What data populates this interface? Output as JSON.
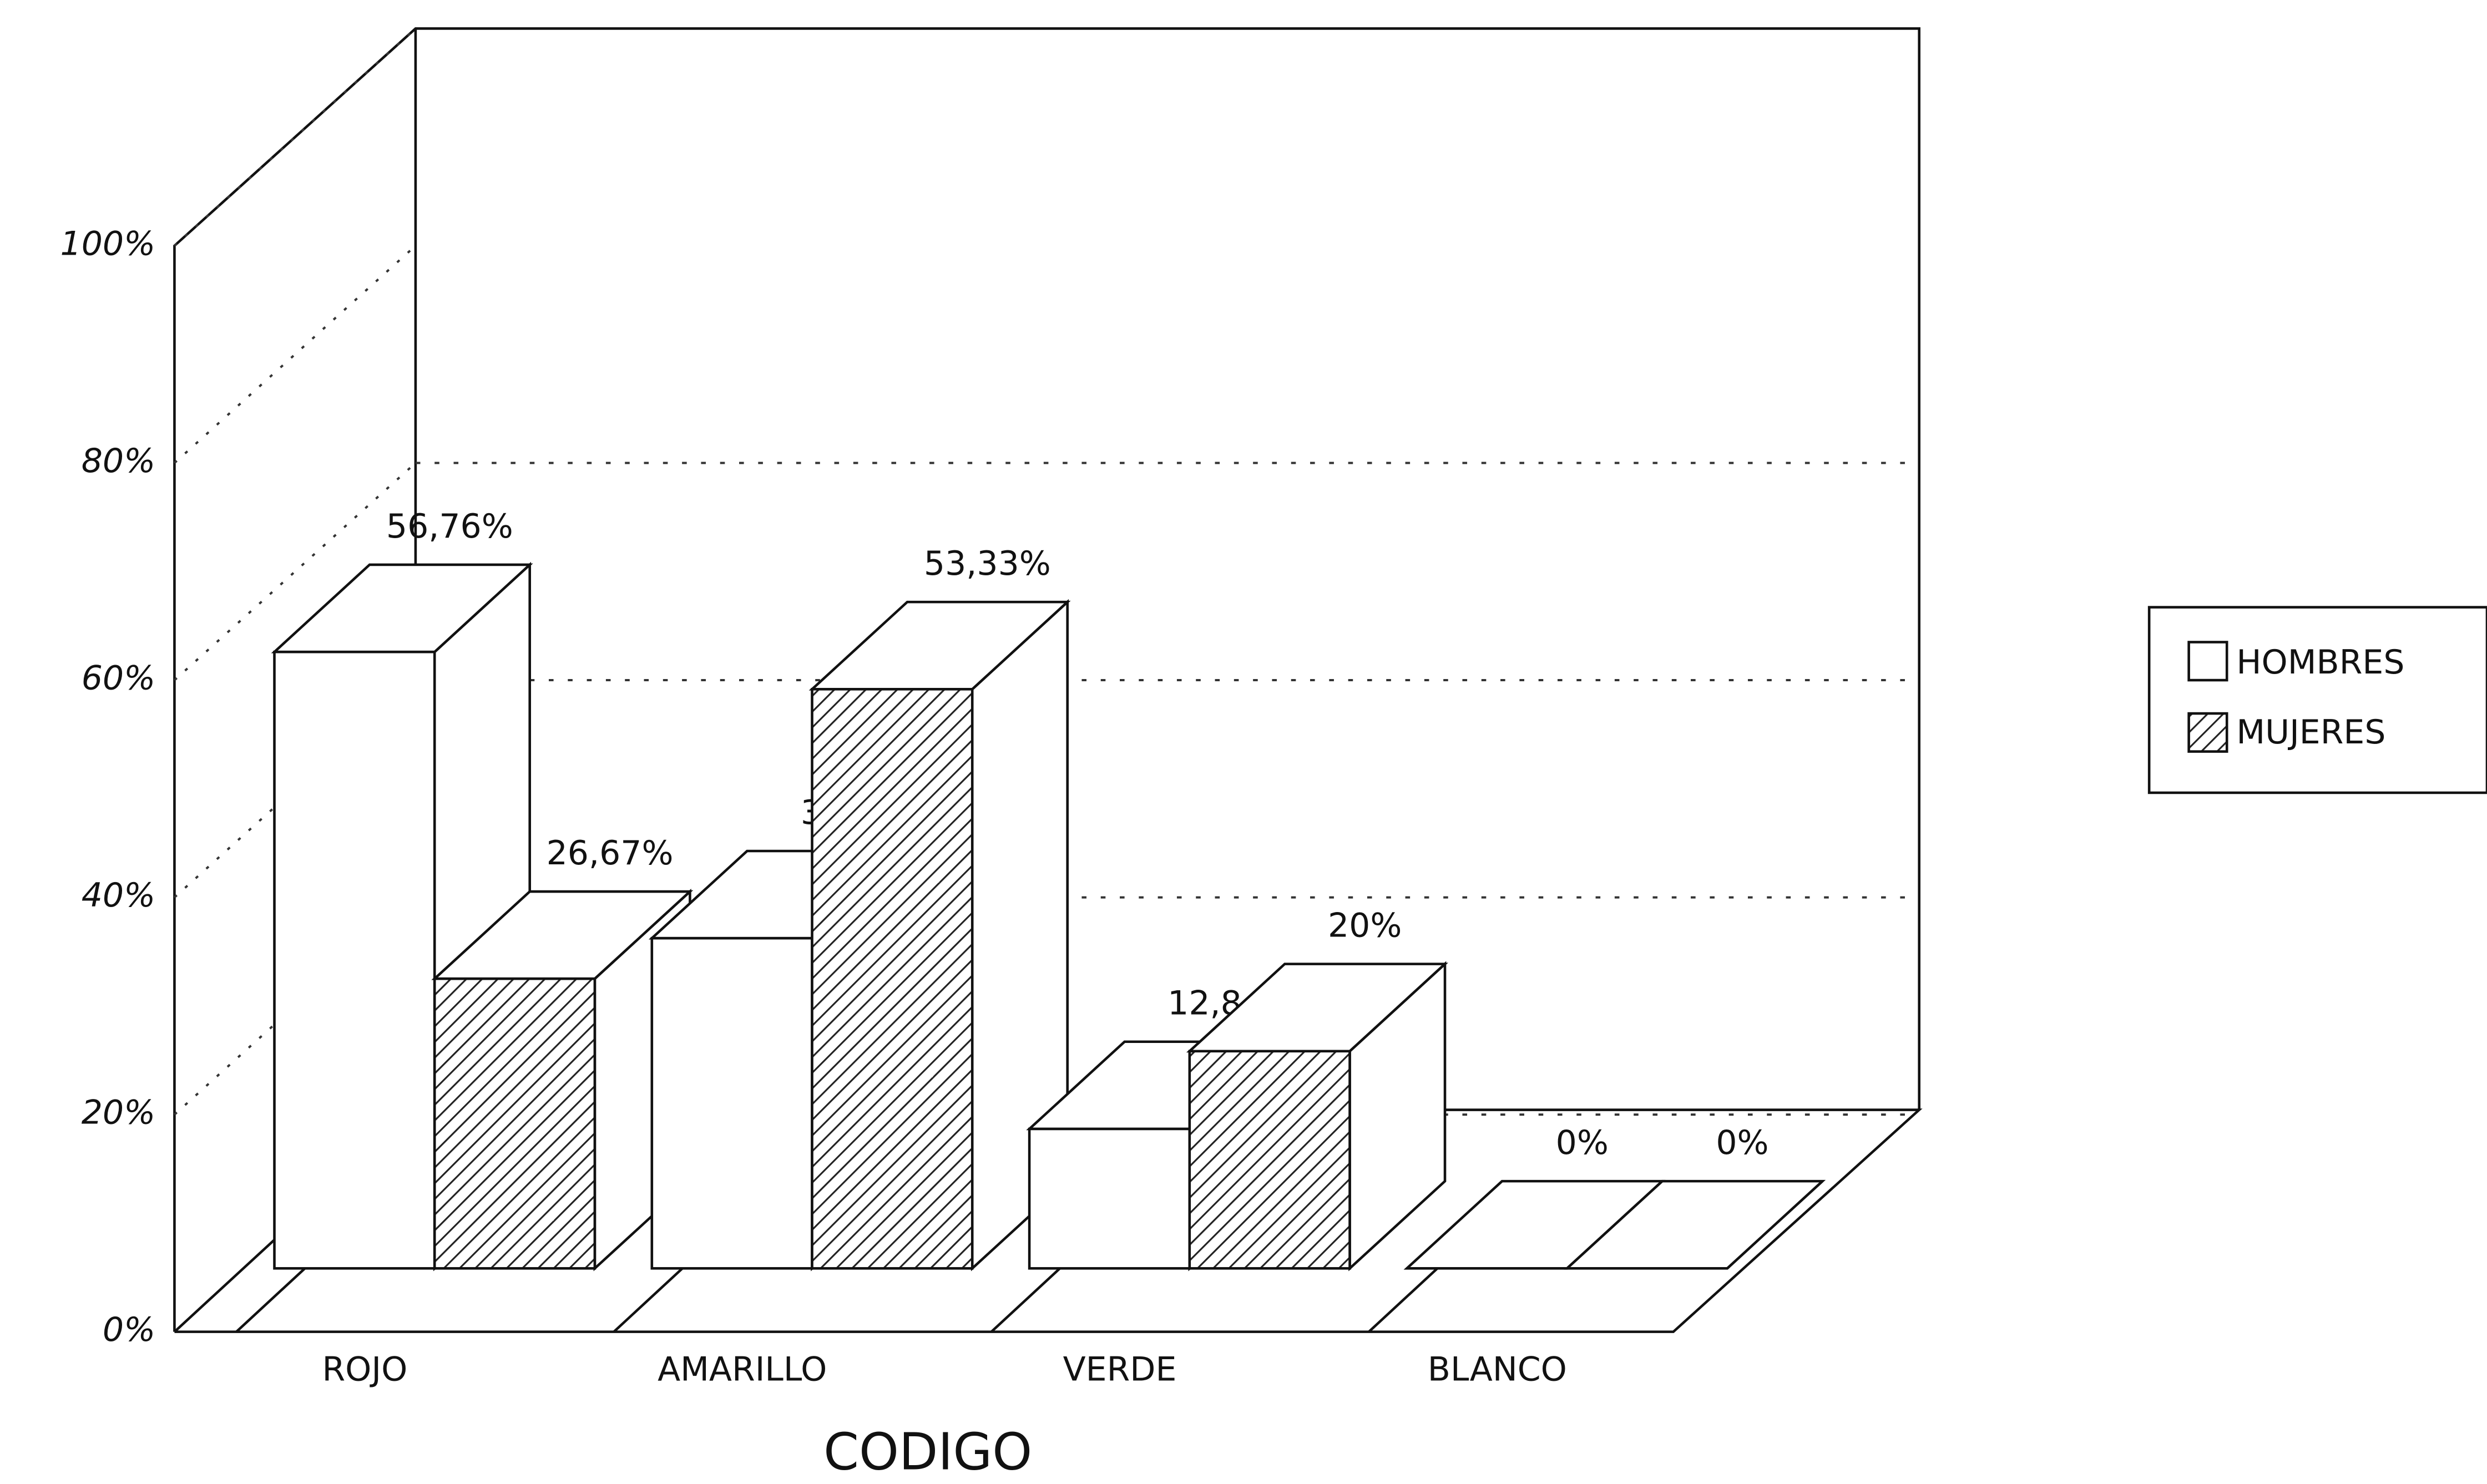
{
  "chart_data": {
    "type": "bar3d",
    "x_label": "CODIGO",
    "categories": [
      "ROJO",
      "AMARILLO",
      "VERDE",
      "BLANCO"
    ],
    "series": [
      {
        "name": "HOMBRES",
        "color": "#ffffff",
        "values": [
          56.76,
          30.4,
          12.84,
          0
        ],
        "value_labels": [
          "56,76%",
          "30,",
          "12,8",
          "0%"
        ]
      },
      {
        "name": "MUJERES",
        "color": "hatch",
        "values": [
          26.67,
          53.33,
          20,
          0
        ],
        "value_labels": [
          "26,67%",
          "53,33%",
          "20%",
          "0%"
        ]
      }
    ],
    "ylim": [
      0,
      100
    ],
    "yticks": [
      {
        "value": 0,
        "label": "0%"
      },
      {
        "value": 20,
        "label": "20%"
      },
      {
        "value": 40,
        "label": "40%"
      },
      {
        "value": 60,
        "label": "60%"
      },
      {
        "value": 80,
        "label": "80%"
      },
      {
        "value": 100,
        "label": "100%"
      }
    ],
    "grid": true,
    "legend": "right"
  }
}
